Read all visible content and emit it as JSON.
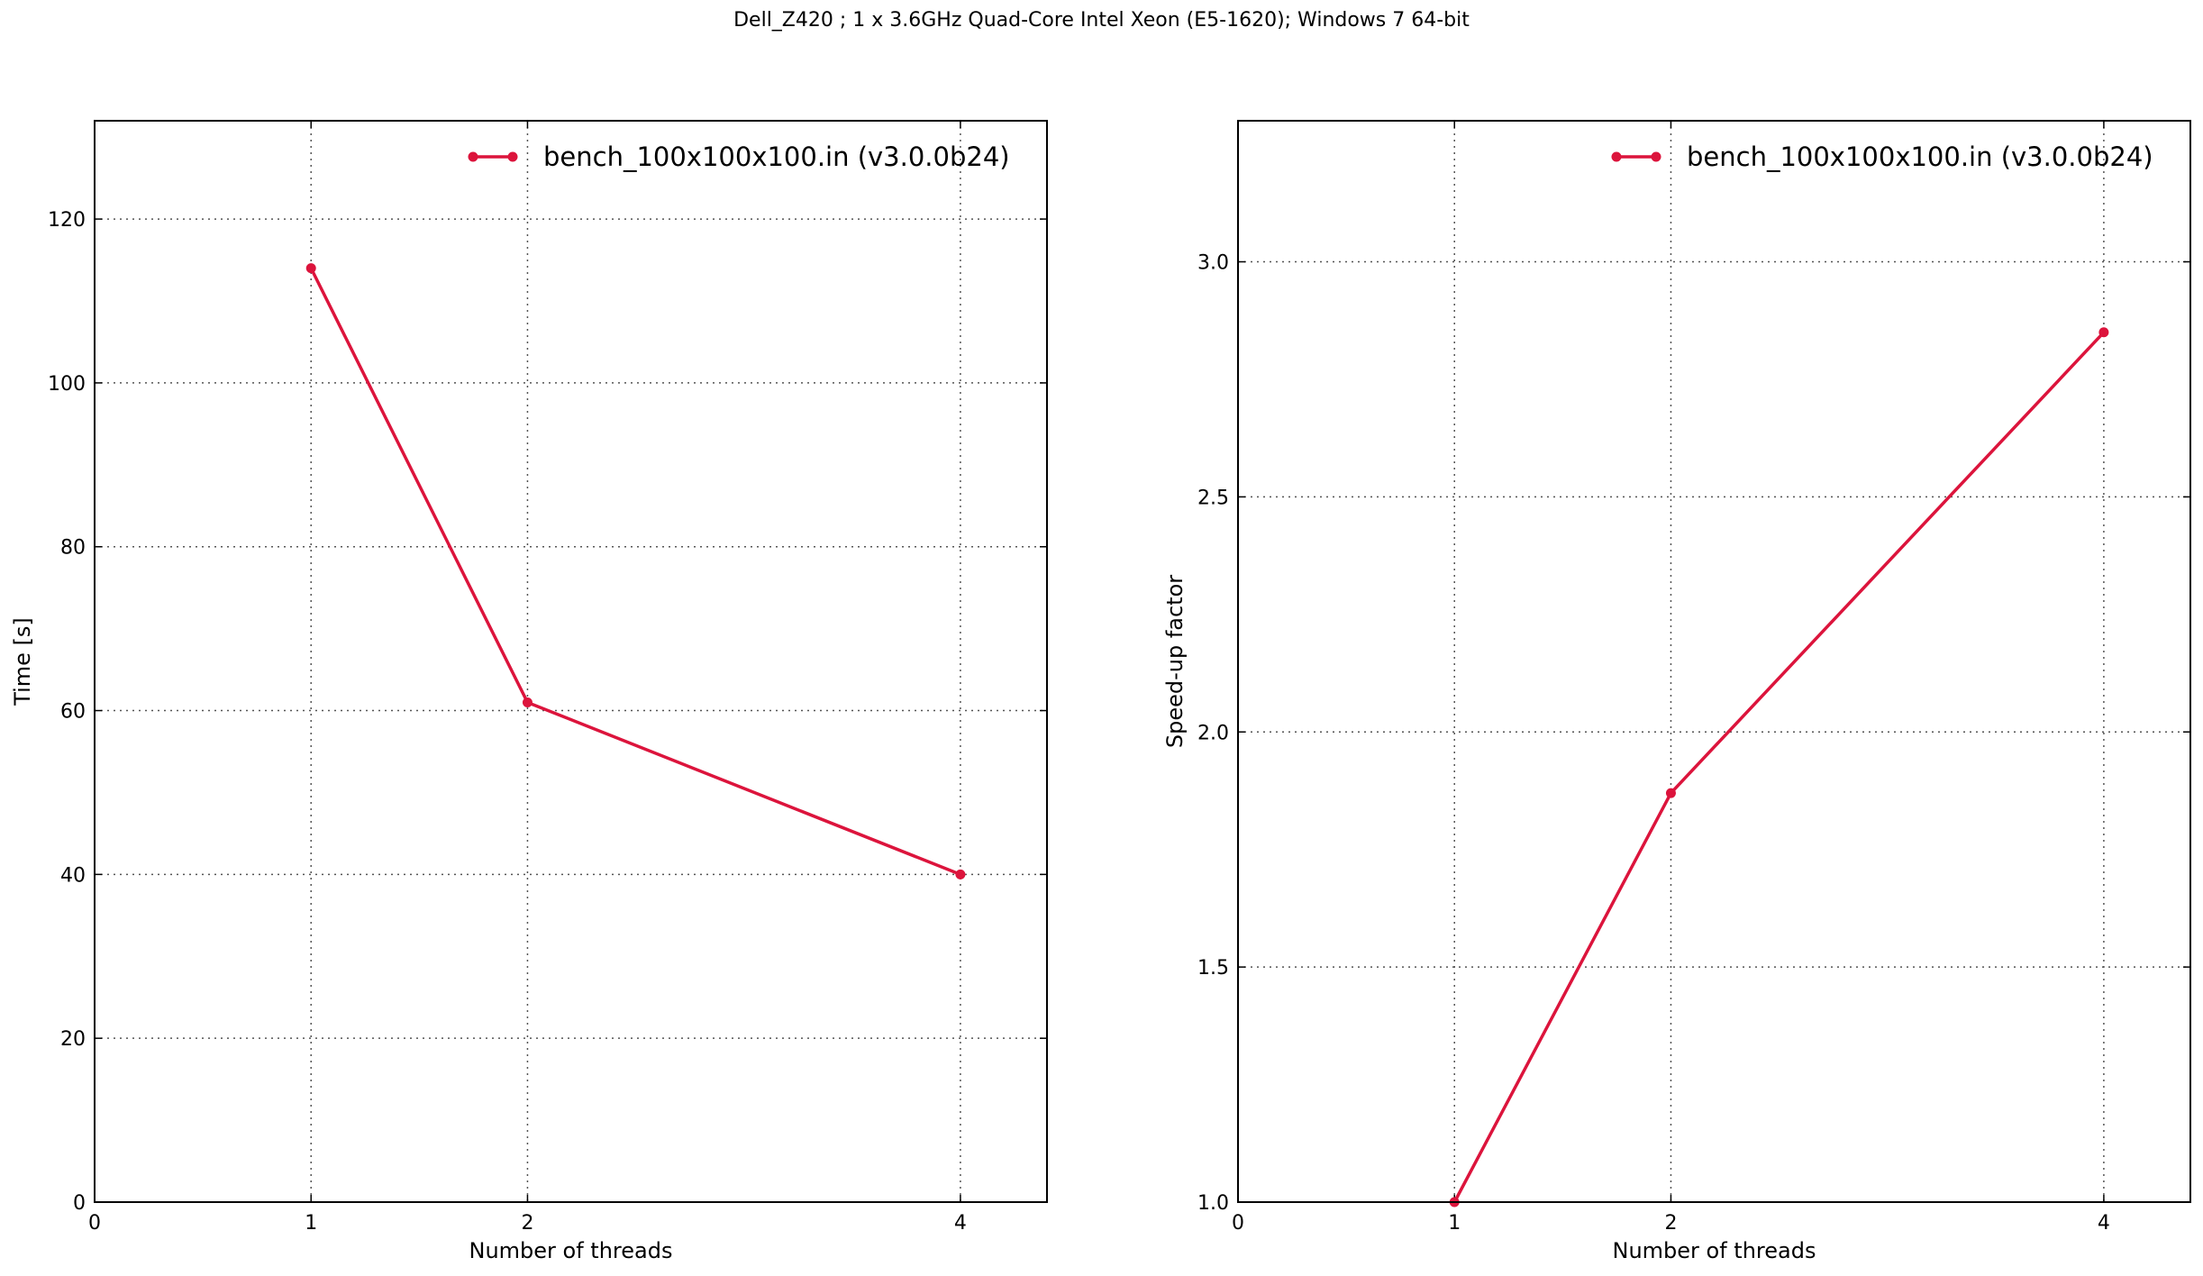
{
  "figure": {
    "title": "Dell_Z420 ; 1 x 3.6GHz Quad-Core Intel Xeon (E5-1620); Windows 7 64-bit",
    "line_color": "#dc143c"
  },
  "chart_data": [
    {
      "type": "line",
      "title": "",
      "xlabel": "Number of threads",
      "ylabel": "Time [s]",
      "xlim": [
        0,
        4.4
      ],
      "ylim": [
        0,
        132
      ],
      "xticks": [
        0,
        1,
        2,
        4
      ],
      "yticks": [
        0,
        20,
        40,
        60,
        80,
        100,
        120
      ],
      "ytick_labels": [
        "0",
        "20",
        "40",
        "60",
        "80",
        "100",
        "120"
      ],
      "grid": true,
      "legend_position": "top-right",
      "series": [
        {
          "name": "bench_100x100x100.in (v3.0.0b24)",
          "x": [
            1,
            2,
            4
          ],
          "y": [
            114,
            61,
            40
          ]
        }
      ]
    },
    {
      "type": "line",
      "title": "",
      "xlabel": "Number of threads",
      "ylabel": "Speed-up factor",
      "xlim": [
        0,
        4.4
      ],
      "ylim": [
        1.0,
        3.3
      ],
      "xticks": [
        0,
        1,
        2,
        4
      ],
      "yticks": [
        1.0,
        1.5,
        2.0,
        2.5,
        3.0
      ],
      "ytick_labels": [
        "1.0",
        "1.5",
        "2.0",
        "2.5",
        "3.0"
      ],
      "grid": true,
      "legend_position": "top-right",
      "series": [
        {
          "name": "bench_100x100x100.in (v3.0.0b24)",
          "x": [
            1,
            2,
            4
          ],
          "y": [
            1.0,
            1.87,
            2.85
          ]
        }
      ]
    }
  ]
}
